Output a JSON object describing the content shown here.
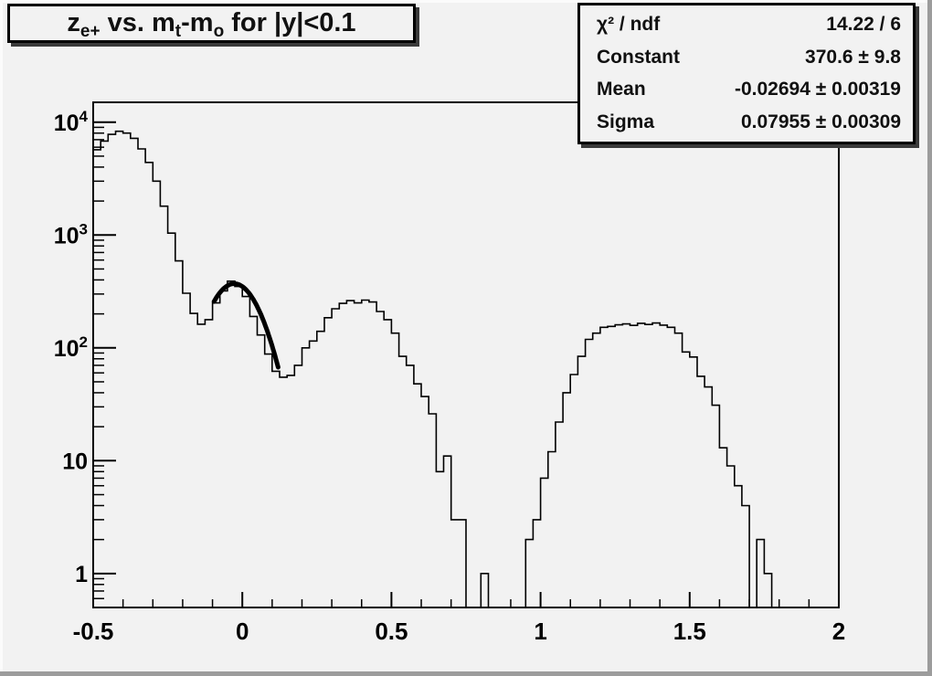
{
  "window": {
    "background": "#f2f2f2",
    "bevel_highlight": "#fbfbfb",
    "bevel_shadow": "#9c9c9c",
    "line_color": "#000000"
  },
  "title_box": {
    "seg1": "z",
    "sub1": "e+",
    "seg2": " vs. m",
    "sub2": "t",
    "seg3": "-m",
    "sub3": "o",
    "seg4": " for |y|<0.1"
  },
  "stats_box": {
    "rows": [
      {
        "label": "χ² / ndf",
        "value": "14.22 / 6"
      },
      {
        "label": "Constant",
        "value": "370.6 ± 9.8"
      },
      {
        "label": "Mean",
        "value": "-0.02694 ± 0.00319"
      },
      {
        "label": "Sigma",
        "value": "0.07955 ± 0.00309"
      }
    ]
  },
  "chart_data": {
    "type": "bar",
    "subtype": "step-histogram",
    "title": "z_{e+} vs. m_{t}-m_{o} for |y|<0.1",
    "xlabel": "",
    "ylabel": "",
    "grid": false,
    "legend_position": "none",
    "y_scale": "log",
    "y_range": [
      0.5,
      15000
    ],
    "x_range": [
      -0.5,
      2.0
    ],
    "n_bins": 100,
    "bin_width": 0.025,
    "values": [
      5700,
      6800,
      7800,
      8300,
      8000,
      7200,
      5800,
      4400,
      3000,
      1800,
      1040,
      590,
      305,
      202,
      162,
      178,
      250,
      320,
      390,
      350,
      285,
      190,
      130,
      88,
      62,
      55,
      57,
      70,
      100,
      115,
      140,
      185,
      222,
      248,
      262,
      250,
      265,
      255,
      210,
      178,
      135,
      84,
      70,
      48,
      37,
      26,
      8,
      11,
      3,
      3,
      0,
      0,
      1,
      0,
      0,
      0,
      0,
      0,
      2,
      3,
      7,
      12,
      22,
      40,
      58,
      84,
      119,
      135,
      152,
      155,
      160,
      163,
      158,
      165,
      161,
      166,
      159,
      152,
      135,
      92,
      83,
      56,
      45,
      31,
      13,
      9,
      6,
      4,
      0,
      2,
      1,
      0,
      0,
      0,
      0,
      0,
      0,
      0,
      0,
      0
    ],
    "x_ticks": [
      {
        "value": -0.5,
        "label": "-0.5"
      },
      {
        "value": 0,
        "label": "0"
      },
      {
        "value": 0.5,
        "label": "0.5"
      },
      {
        "value": 1,
        "label": "1"
      },
      {
        "value": 1.5,
        "label": "1.5"
      },
      {
        "value": 2,
        "label": "2"
      }
    ],
    "x_minor_step": 0.1,
    "y_ticks": [
      {
        "value": 1,
        "base": "1",
        "exp": ""
      },
      {
        "value": 10,
        "base": "10",
        "exp": ""
      },
      {
        "value": 100,
        "base": "10",
        "exp": "2"
      },
      {
        "value": 1000,
        "base": "10",
        "exp": "3"
      },
      {
        "value": 10000,
        "base": "10",
        "exp": "4"
      }
    ],
    "fit": {
      "type": "gaussian",
      "constant": 370.6,
      "mean": -0.02694,
      "sigma": 0.07955,
      "draw_range": [
        -0.095,
        0.12
      ],
      "color": "#000000",
      "line_width": 5
    }
  }
}
